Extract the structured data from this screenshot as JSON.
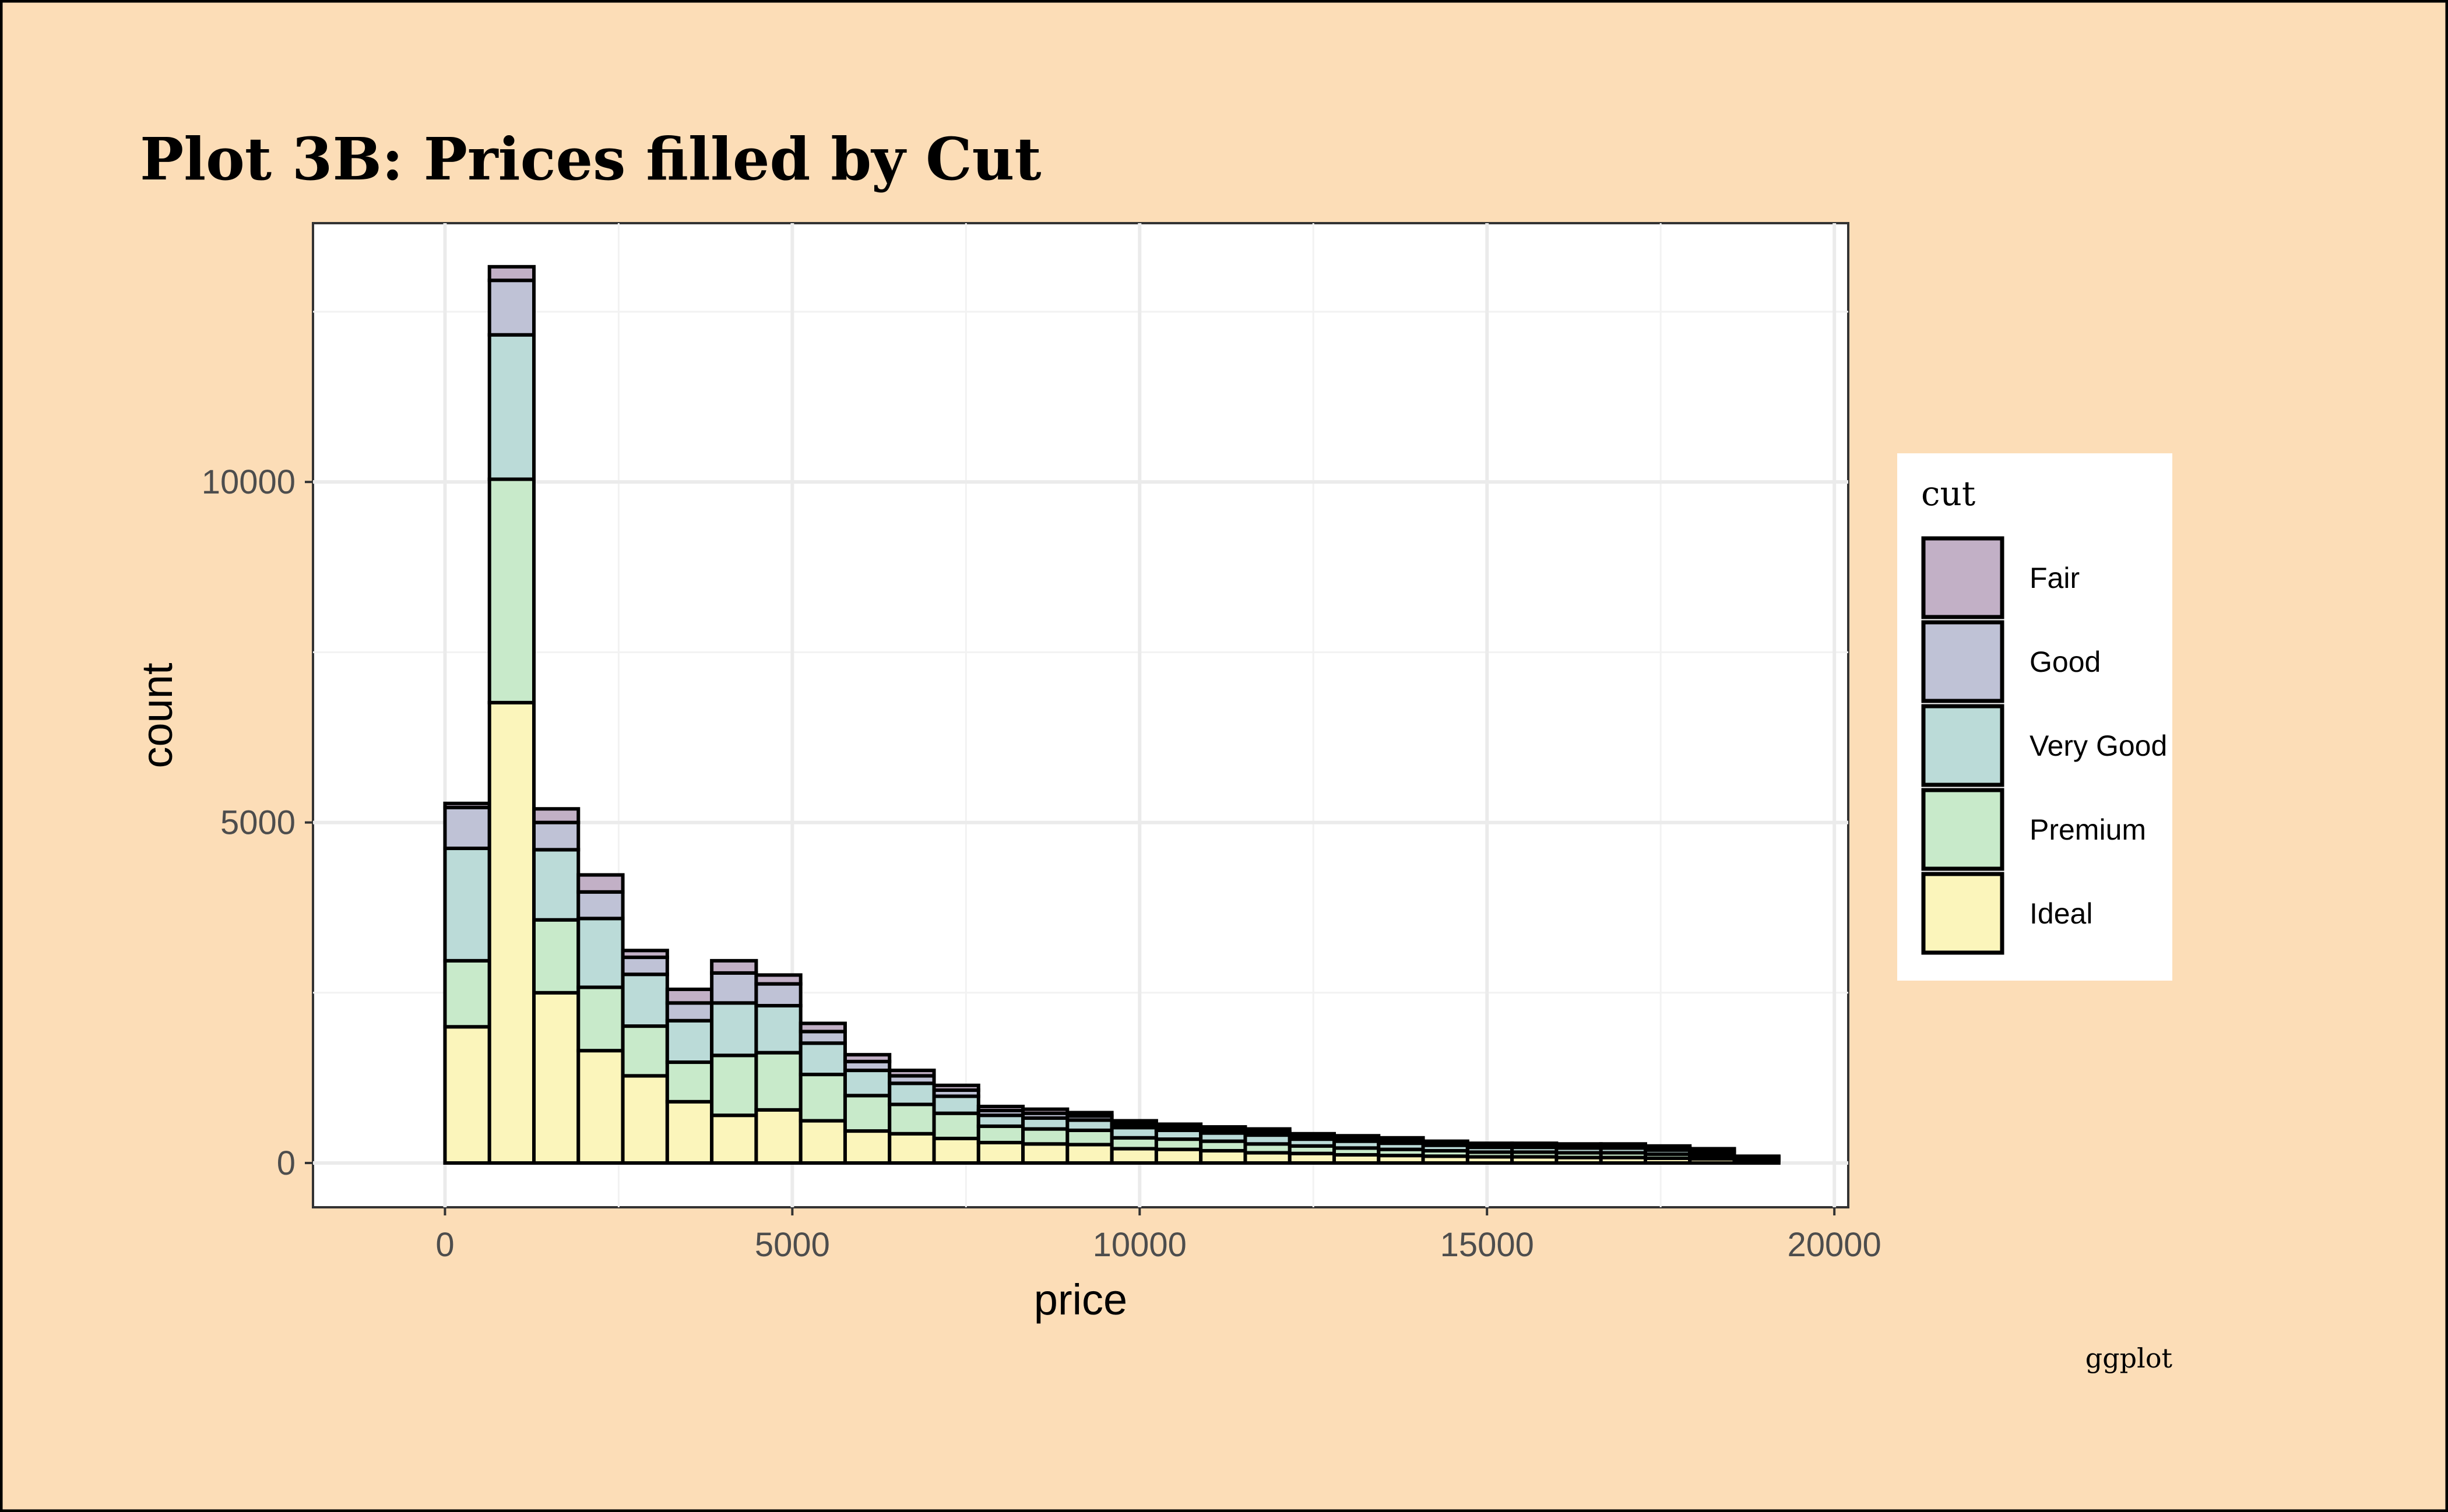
{
  "chart_data": {
    "type": "bar",
    "stacked": true,
    "title": "Plot 3B: Prices filled by Cut",
    "xlabel": "price",
    "ylabel": "count",
    "caption": "ggplot",
    "xlim": [
      -1900,
      20200
    ],
    "ylim": [
      -650,
      13800
    ],
    "x_ticks": [
      0,
      5000,
      10000,
      15000,
      20000
    ],
    "y_ticks": [
      0,
      5000,
      10000
    ],
    "bin_width": 640,
    "x": [
      0,
      640,
      1280,
      1920,
      2560,
      3200,
      3840,
      4480,
      5120,
      5760,
      6400,
      7040,
      7680,
      8320,
      8960,
      9600,
      10240,
      10880,
      11520,
      12160,
      12800,
      13440,
      14080,
      14720,
      15360,
      16000,
      16640,
      17280,
      17920,
      18560
    ],
    "legend": {
      "title": "cut",
      "position": "right"
    },
    "grid": true,
    "series": [
      {
        "name": "Ideal",
        "color": "#FBF5BB",
        "values": [
          2000,
          6760,
          2500,
          1650,
          1280,
          900,
          700,
          780,
          620,
          470,
          430,
          360,
          300,
          280,
          270,
          210,
          200,
          180,
          150,
          140,
          120,
          110,
          100,
          90,
          90,
          80,
          80,
          70,
          60,
          35
        ]
      },
      {
        "name": "Premium",
        "color": "#C8EACA",
        "values": [
          970,
          3280,
          1070,
          930,
          730,
          580,
          880,
          840,
          680,
          520,
          430,
          370,
          240,
          220,
          210,
          160,
          150,
          140,
          130,
          110,
          100,
          90,
          80,
          70,
          70,
          70,
          70,
          60,
          50,
          20
        ]
      },
      {
        "name": "Very Good",
        "color": "#BBDBD8",
        "values": [
          1650,
          2120,
          1030,
          1010,
          760,
          610,
          770,
          690,
          460,
          370,
          310,
          250,
          160,
          160,
          150,
          150,
          130,
          120,
          130,
          100,
          100,
          90,
          80,
          70,
          70,
          70,
          70,
          60,
          50,
          25
        ]
      },
      {
        "name": "Good",
        "color": "#BFC2D6",
        "values": [
          600,
          800,
          400,
          390,
          250,
          260,
          440,
          320,
          170,
          130,
          110,
          90,
          70,
          70,
          60,
          50,
          50,
          50,
          50,
          40,
          40,
          40,
          30,
          30,
          30,
          30,
          30,
          30,
          20,
          10
        ]
      },
      {
        "name": "Fair",
        "color": "#C2B0C6",
        "values": [
          60,
          200,
          200,
          250,
          100,
          200,
          180,
          130,
          120,
          100,
          80,
          70,
          60,
          60,
          50,
          50,
          40,
          40,
          40,
          40,
          40,
          40,
          30,
          30,
          30,
          30,
          30,
          30,
          30,
          10
        ]
      }
    ]
  }
}
